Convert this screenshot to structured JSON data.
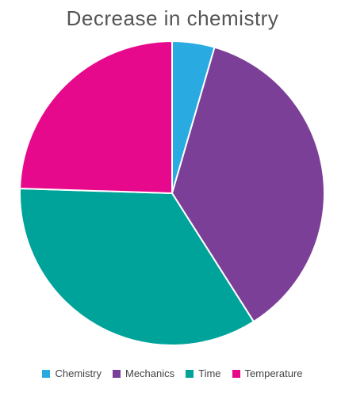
{
  "chart_data": {
    "type": "pie",
    "title": "Decrease in chemistry",
    "categories": [
      "Chemistry",
      "Mechanics",
      "Time",
      "Temperature"
    ],
    "values": [
      4.5,
      36.5,
      34.5,
      24.5
    ],
    "colors": [
      "#29ABE2",
      "#7B3F98",
      "#00A39A",
      "#E6098C"
    ],
    "legend_position": "bottom"
  }
}
